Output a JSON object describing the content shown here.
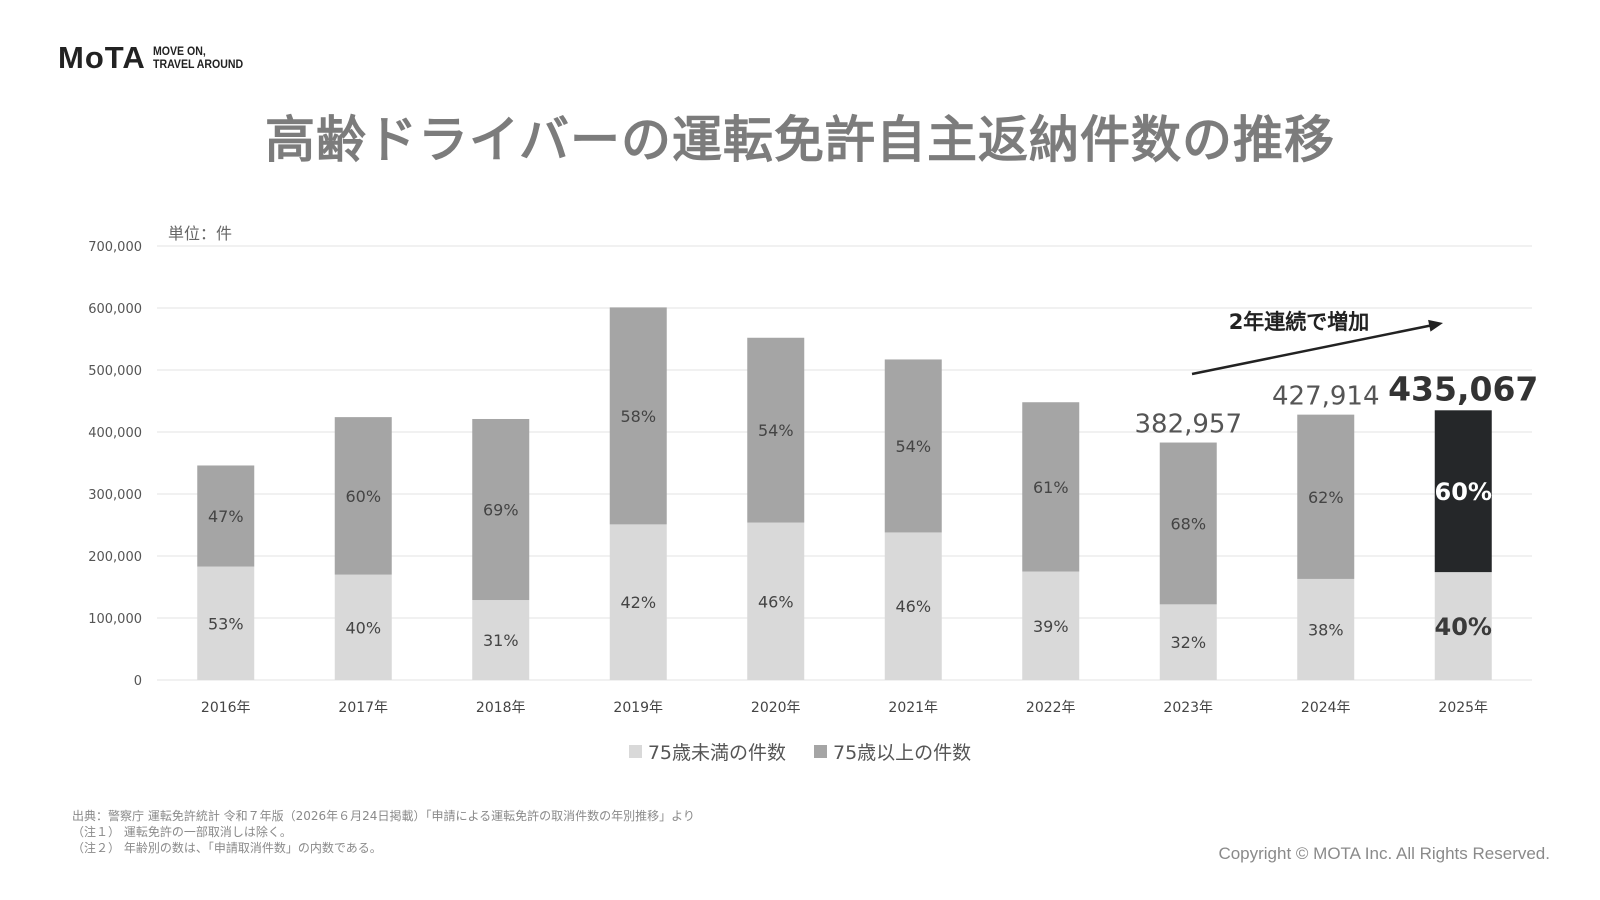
{
  "brand": {
    "logo": "MoTA",
    "tagline_1": "MOVE ON,",
    "tagline_2": "TRAVEL AROUND"
  },
  "title": "高齢ドライバーの運転免許自主返納件数の推移",
  "unit_label": "単位：件",
  "colors": {
    "under75": "#d9d9d9",
    "over75": "#a5a5a5",
    "highlight": "#252729",
    "grid": "#e3e3e3",
    "arrow": "#222222"
  },
  "chart_data": {
    "type": "bar",
    "stacked": true,
    "categories": [
      "2016年",
      "2017年",
      "2018年",
      "2019年",
      "2020年",
      "2021年",
      "2022年",
      "2023年",
      "2024年",
      "2025年"
    ],
    "series": [
      {
        "name": "75歳未満の件数",
        "values": [
          183000,
          170000,
          129000,
          251000,
          254000,
          238000,
          175000,
          122000,
          163000,
          174000
        ],
        "labels": [
          "53%",
          "40%",
          "31%",
          "42%",
          "46%",
          "46%",
          "39%",
          "32%",
          "38%",
          "40%"
        ]
      },
      {
        "name": "75歳以上の件数",
        "values": [
          163000,
          254000,
          292000,
          350000,
          298000,
          279000,
          273000,
          261000,
          265000,
          261000
        ],
        "labels": [
          "47%",
          "60%",
          "69%",
          "58%",
          "54%",
          "54%",
          "61%",
          "68%",
          "62%",
          "60%"
        ]
      }
    ],
    "yticks": [
      "0",
      "100,000",
      "200,000",
      "300,000",
      "400,000",
      "500,000",
      "600,000",
      "700,000"
    ],
    "ylim": [
      0,
      700000
    ],
    "grid": true,
    "totals": [
      {
        "category": "2023年",
        "label": "382,957"
      },
      {
        "category": "2024年",
        "label": "427,914"
      },
      {
        "category": "2025年",
        "label": "435,067"
      }
    ],
    "annotation": "2年連続で増加",
    "highlight_category": "2025年",
    "legend_position": "bottom"
  },
  "footnotes": [
    "出典：警察庁 運転免許統計 令和７年版（2026年６月24日掲載）「申請による運転免許の取消件数の年別推移」より",
    "（注１） 運転免許の一部取消しは除く。",
    "（注２） 年齢別の数は、「申請取消件数」の内数である。"
  ],
  "copyright": "Copyright © MOTA Inc. All Rights Reserved."
}
